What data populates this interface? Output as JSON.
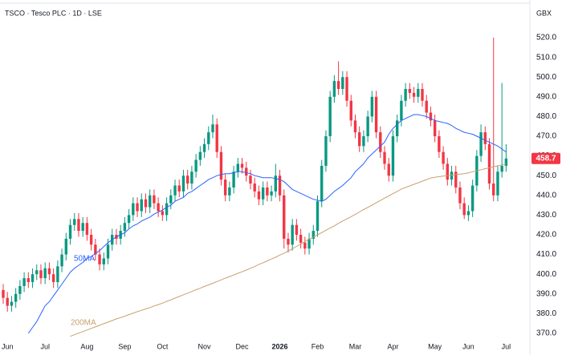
{
  "chart_data": {
    "type": "candlestick",
    "title": "TSCO · Tesco PLC · 1D · LSE",
    "currency": "GBX",
    "categories": [
      null,
      "Jun",
      null,
      null,
      null,
      null,
      null,
      null,
      null,
      null,
      "Jul",
      null,
      null,
      null,
      null,
      null,
      null,
      null,
      null,
      null,
      "Aug",
      null,
      null,
      null,
      null,
      null,
      null,
      null,
      null,
      "Sep",
      null,
      null,
      null,
      null,
      null,
      null,
      null,
      null,
      "Oct",
      null,
      null,
      null,
      null,
      null,
      null,
      null,
      null,
      null,
      "Nov",
      null,
      null,
      null,
      null,
      null,
      null,
      null,
      null,
      "Dec",
      null,
      null,
      null,
      null,
      null,
      null,
      null,
      null,
      "2026",
      null,
      null,
      null,
      null,
      null,
      null,
      null,
      null,
      "Feb",
      null,
      null,
      null,
      null,
      null,
      null,
      null,
      null,
      "Mar",
      null,
      null,
      null,
      null,
      null,
      null,
      null,
      null,
      "Apr",
      null,
      null,
      null,
      null,
      null,
      null,
      null,
      null,
      null,
      "May",
      null,
      null,
      null,
      null,
      null,
      null,
      null,
      "Jun",
      null,
      null,
      null,
      null,
      null,
      null,
      null,
      null,
      "Jul"
    ],
    "open": [
      392,
      388,
      384,
      386,
      390,
      394,
      398,
      396,
      400,
      402,
      398,
      403,
      400,
      396,
      404,
      410,
      418,
      425,
      428,
      422,
      426,
      420,
      415,
      410,
      405,
      408,
      415,
      420,
      418,
      422,
      426,
      430,
      436,
      432,
      438,
      434,
      440,
      436,
      432,
      430,
      436,
      440,
      445,
      442,
      450,
      446,
      452,
      458,
      462,
      466,
      472,
      476,
      462,
      448,
      440,
      444,
      452,
      456,
      454,
      450,
      446,
      442,
      438,
      444,
      440,
      442,
      450,
      440,
      418,
      415,
      425,
      420,
      416,
      413,
      418,
      422,
      437,
      455,
      470,
      490,
      498,
      494,
      500,
      488,
      478,
      472,
      465,
      470,
      480,
      490,
      472,
      462,
      456,
      450,
      470,
      478,
      488,
      494,
      492,
      490,
      494,
      488,
      482,
      478,
      470,
      462,
      456,
      448,
      452,
      444,
      436,
      430,
      432,
      445,
      460,
      472,
      466,
      446,
      440,
      452,
      455
    ],
    "high": [
      395,
      391,
      389,
      393,
      397,
      401,
      401,
      403,
      405,
      405,
      406,
      406,
      403,
      407,
      413,
      421,
      428,
      431,
      431,
      429,
      429,
      423,
      418,
      413,
      411,
      418,
      423,
      423,
      425,
      429,
      433,
      439,
      439,
      441,
      441,
      443,
      443,
      439,
      435,
      439,
      443,
      448,
      448,
      453,
      453,
      455,
      461,
      465,
      469,
      475,
      481,
      479,
      465,
      451,
      447,
      455,
      459,
      459,
      457,
      453,
      449,
      445,
      447,
      447,
      445,
      456,
      453,
      443,
      421,
      428,
      428,
      423,
      419,
      421,
      425,
      440,
      458,
      473,
      493,
      501,
      508,
      503,
      503,
      491,
      481,
      475,
      473,
      483,
      493,
      493,
      475,
      465,
      459,
      473,
      481,
      491,
      497,
      497,
      495,
      497,
      497,
      491,
      485,
      481,
      473,
      465,
      459,
      455,
      455,
      447,
      439,
      435,
      448,
      463,
      476,
      475,
      469,
      520,
      455,
      497,
      466
    ],
    "low": [
      385,
      381,
      381,
      383,
      387,
      391,
      393,
      393,
      397,
      395,
      395,
      397,
      393,
      393,
      401,
      407,
      415,
      422,
      419,
      419,
      417,
      412,
      407,
      402,
      402,
      405,
      412,
      415,
      415,
      419,
      423,
      427,
      429,
      429,
      431,
      431,
      433,
      429,
      427,
      427,
      433,
      437,
      439,
      439,
      443,
      443,
      449,
      455,
      459,
      463,
      469,
      459,
      445,
      437,
      437,
      441,
      449,
      451,
      447,
      443,
      439,
      435,
      435,
      437,
      437,
      439,
      437,
      413,
      411,
      412,
      417,
      413,
      410,
      410,
      415,
      419,
      434,
      452,
      467,
      487,
      491,
      491,
      485,
      475,
      469,
      462,
      462,
      467,
      477,
      469,
      459,
      453,
      447,
      447,
      467,
      475,
      485,
      489,
      487,
      487,
      485,
      479,
      475,
      467,
      459,
      453,
      445,
      445,
      441,
      433,
      428,
      427,
      429,
      442,
      457,
      463,
      443,
      437,
      437,
      449,
      452
    ],
    "close": [
      388,
      384,
      386,
      390,
      394,
      398,
      396,
      400,
      402,
      398,
      403,
      400,
      396,
      404,
      410,
      418,
      425,
      428,
      422,
      426,
      420,
      415,
      410,
      405,
      408,
      415,
      420,
      418,
      422,
      426,
      430,
      436,
      432,
      438,
      434,
      440,
      436,
      432,
      430,
      436,
      440,
      445,
      442,
      450,
      446,
      452,
      458,
      462,
      466,
      472,
      476,
      462,
      448,
      440,
      444,
      452,
      456,
      454,
      450,
      446,
      442,
      438,
      444,
      440,
      442,
      450,
      440,
      418,
      415,
      425,
      420,
      416,
      413,
      418,
      422,
      437,
      455,
      470,
      490,
      498,
      494,
      500,
      488,
      478,
      472,
      465,
      470,
      480,
      490,
      472,
      462,
      456,
      450,
      470,
      478,
      488,
      494,
      492,
      490,
      494,
      488,
      482,
      478,
      470,
      462,
      456,
      448,
      452,
      444,
      436,
      430,
      432,
      445,
      460,
      472,
      466,
      446,
      440,
      452,
      455,
      458.7
    ],
    "up_color": "#089981",
    "down_color": "#f23645",
    "last_price_color": "#f23645",
    "series": [
      {
        "name": "50MA",
        "color": "#2962ff",
        "values": [
          null,
          null,
          null,
          null,
          null,
          null,
          370,
          373,
          376,
          380,
          384,
          386,
          389,
          392,
          395,
          398,
          401,
          403,
          404.5,
          406,
          408,
          409,
          410.5,
          412,
          414,
          416,
          417.5,
          419,
          420,
          421,
          423,
          424.5,
          425.5,
          427,
          428,
          429,
          430.5,
          431.5,
          432.5,
          434,
          435,
          437,
          438,
          439,
          441,
          442,
          443.5,
          445,
          446.5,
          448,
          449,
          450,
          450.5,
          451,
          451,
          451.5,
          452,
          452,
          451.5,
          451,
          450,
          449.5,
          449,
          449,
          449,
          448.5,
          448,
          447,
          445,
          443,
          442,
          441,
          440,
          439,
          438,
          437.5,
          437,
          438,
          440,
          442,
          443.5,
          445,
          447,
          449,
          452,
          454,
          456,
          459,
          461,
          463,
          465,
          467,
          471,
          474,
          476,
          478,
          479,
          480,
          481,
          481,
          480.5,
          480,
          479,
          478,
          477.5,
          477,
          476.5,
          475.5,
          474,
          473,
          472,
          471.5,
          471,
          470,
          469,
          468,
          467,
          466,
          465,
          463.5,
          462
        ]
      },
      {
        "name": "200MA",
        "color": "#c8a06e",
        "values": [
          null,
          null,
          null,
          null,
          null,
          null,
          null,
          null,
          null,
          null,
          null,
          null,
          null,
          null,
          null,
          null,
          368.5,
          369.3,
          370.1,
          370.9,
          371.7,
          372.5,
          373.3,
          374.1,
          374.9,
          375.7,
          376.5,
          377.3,
          378,
          378.7,
          379.5,
          380.2,
          381,
          381.7,
          382.4,
          383.1,
          383.9,
          384.6,
          385.3,
          386.2,
          387,
          387.9,
          388.7,
          389.6,
          390.4,
          391.2,
          392.1,
          392.9,
          393.8,
          394.6,
          395.4,
          396.3,
          397.1,
          398,
          398.8,
          399.6,
          400.5,
          401.2,
          402.1,
          403,
          403.9,
          404.9,
          405.8,
          406.8,
          407.7,
          408.6,
          409.7,
          410.6,
          411.8,
          412.9,
          414.1,
          415.3,
          416.5,
          417.7,
          418.8,
          420,
          421.1,
          422.3,
          423.4,
          424.5,
          425.8,
          427,
          428.1,
          429.2,
          430.4,
          431.6,
          432.8,
          433.9,
          435,
          436.3,
          437.4,
          438.6,
          439.7,
          440.9,
          442,
          443.2,
          444,
          444.8,
          445.6,
          446.4,
          447.2,
          448,
          448.8,
          449.2,
          449.5,
          449.8,
          450,
          450.3,
          450.6,
          450.8,
          451,
          451.4,
          452,
          452.5,
          453,
          453.5,
          454,
          454.5,
          455,
          455.5,
          456
        ]
      }
    ],
    "ylim": [
      364.3,
      531.8
    ],
    "yticks": [
      {
        "value": 370,
        "label": "370.0"
      },
      {
        "value": 380,
        "label": "380.0"
      },
      {
        "value": 390,
        "label": "390.0"
      },
      {
        "value": 400,
        "label": "400.0"
      },
      {
        "value": 410,
        "label": "410.0"
      },
      {
        "value": 420,
        "label": "420.0"
      },
      {
        "value": 430,
        "label": "430.0"
      },
      {
        "value": 440,
        "label": "440.0"
      },
      {
        "value": 450,
        "label": "450.0"
      },
      {
        "value": 460,
        "label": "460.0"
      },
      {
        "value": 470,
        "label": "470.0"
      },
      {
        "value": 480,
        "label": "480.0"
      },
      {
        "value": 490,
        "label": "490.0"
      },
      {
        "value": 500,
        "label": "500.0"
      },
      {
        "value": 510,
        "label": "510.0"
      },
      {
        "value": 520,
        "label": "520.0"
      }
    ],
    "grid": false
  }
}
